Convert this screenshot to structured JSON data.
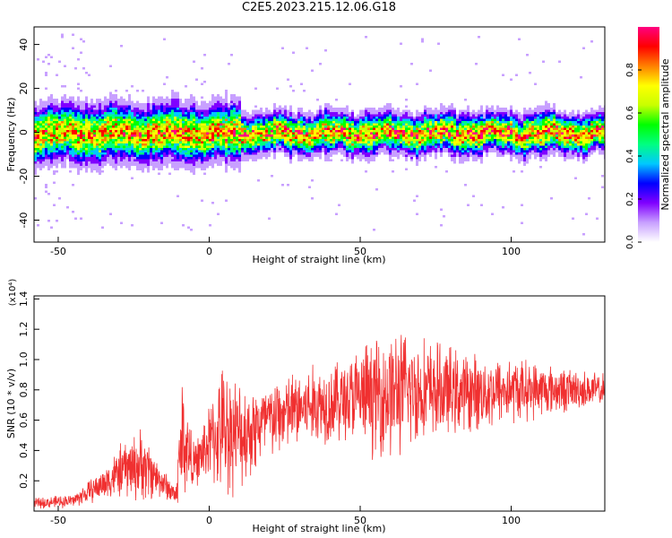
{
  "page": {
    "title": "C2E5.2023.215.12.06.G18"
  },
  "colors": {
    "snr_line": "#f03030",
    "colormap": [
      "#ffffff",
      "#c8a0ff",
      "#8000ff",
      "#0000ff",
      "#00c8ff",
      "#00ff80",
      "#00ff00",
      "#c8ff00",
      "#ffff00",
      "#ff8000",
      "#ff0000",
      "#ff0080"
    ]
  },
  "chart_data": [
    {
      "type": "heatmap",
      "title": "C2E5.2023.215.12.06.G18",
      "xlabel": "Height of straight line (km)",
      "ylabel": "Frequency (Hz)",
      "xlim": [
        -58,
        131
      ],
      "ylim": [
        -50,
        48
      ],
      "xticks": [
        -50,
        0,
        50,
        100
      ],
      "yticks": [
        -40,
        -20,
        0,
        20,
        40
      ],
      "colorbar": {
        "label": "Normalized spectral amplitude",
        "range": [
          0.0,
          1.0
        ],
        "ticks": [
          "0.0",
          "0.2",
          "0.4",
          "0.6",
          "0.8"
        ]
      },
      "ridge": {
        "center_hz": 0,
        "typical_halfwidth_hz": 4,
        "peak_amplitude": 1.0
      }
    },
    {
      "type": "line",
      "xlabel": "Height of straight line (km)",
      "ylabel": "SNR (10 * v/v)",
      "y_multiplier": "(x10⁴)",
      "xlim": [
        -58,
        131
      ],
      "ylim": [
        0.0,
        1.42
      ],
      "xticks": [
        -50,
        0,
        50,
        100
      ],
      "yticks": [
        "0.2",
        "0.4",
        "0.6",
        "0.8",
        "1.0",
        "1.2",
        "1.4"
      ],
      "series": [
        {
          "envelope_points": [
            {
              "x": -58,
              "mean": 0.05,
              "spread": 0.04
            },
            {
              "x": -45,
              "mean": 0.07,
              "spread": 0.05
            },
            {
              "x": -35,
              "mean": 0.18,
              "spread": 0.12
            },
            {
              "x": -28,
              "mean": 0.28,
              "spread": 0.22
            },
            {
              "x": -22,
              "mean": 0.3,
              "spread": 0.28
            },
            {
              "x": -16,
              "mean": 0.2,
              "spread": 0.12
            },
            {
              "x": -11,
              "mean": 0.1,
              "spread": 0.08
            },
            {
              "x": -9,
              "mean": 0.5,
              "spread": 0.5
            },
            {
              "x": -5,
              "mean": 0.3,
              "spread": 0.15
            },
            {
              "x": 0,
              "mean": 0.45,
              "spread": 0.3
            },
            {
              "x": 5,
              "mean": 0.55,
              "spread": 0.5
            },
            {
              "x": 10,
              "mean": 0.5,
              "spread": 0.4
            },
            {
              "x": 20,
              "mean": 0.6,
              "spread": 0.3
            },
            {
              "x": 30,
              "mean": 0.68,
              "spread": 0.3
            },
            {
              "x": 45,
              "mean": 0.74,
              "spread": 0.32
            },
            {
              "x": 60,
              "mean": 0.78,
              "spread": 0.5
            },
            {
              "x": 70,
              "mean": 0.8,
              "spread": 0.4
            },
            {
              "x": 85,
              "mean": 0.78,
              "spread": 0.3
            },
            {
              "x": 100,
              "mean": 0.8,
              "spread": 0.25
            },
            {
              "x": 115,
              "mean": 0.8,
              "spread": 0.18
            },
            {
              "x": 131,
              "mean": 0.8,
              "spread": 0.12
            }
          ]
        }
      ]
    }
  ]
}
